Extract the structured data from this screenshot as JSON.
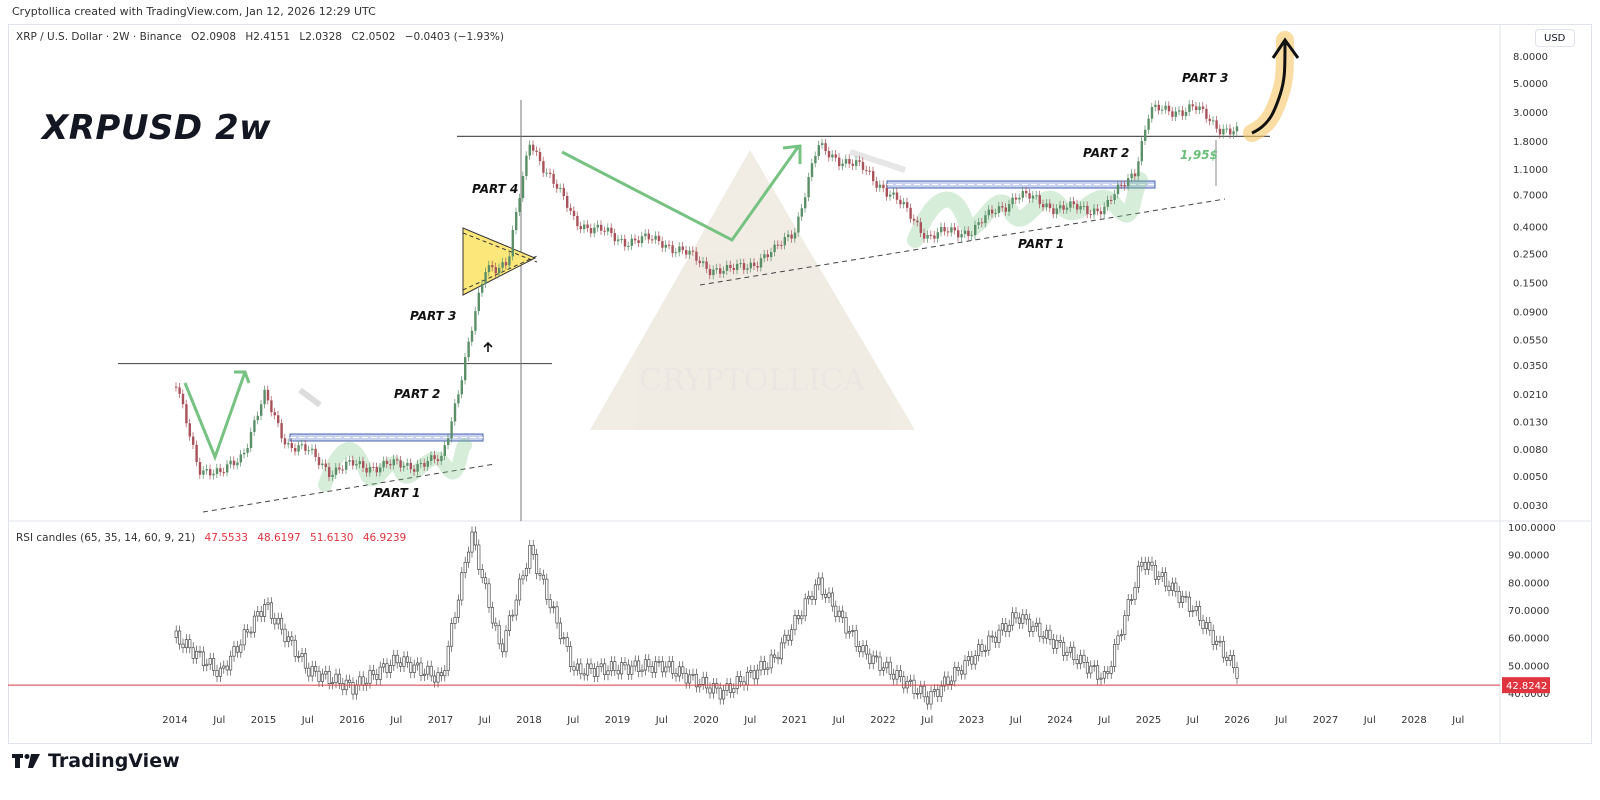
{
  "header": {
    "credit": "Cryptollica created with TradingView.com, Jan 12, 2026 12:29 UTC",
    "symbol": "XRP / U.S. Dollar · 2W · Binance",
    "ohlc": {
      "open": "O2.0908",
      "high": "H2.4151",
      "low": "L2.0328",
      "close": "C2.0502",
      "change": "−0.0403 (−1.93%)"
    },
    "currency_button": "USD"
  },
  "title_annotation": "XRPUSD 2w",
  "brand": "TradingView",
  "watermark": "CRYPTOLLICA",
  "colors": {
    "up": "#5b8f67",
    "down": "#a8525a",
    "rsi_line": "#e0343f",
    "arrow_green": "#76c282",
    "zone_blue": "#4a63b0",
    "yellow_fill": "#fbe77a",
    "highlight": "#f6c766"
  },
  "rsi_panel": {
    "label": "RSI candles (65, 35, 14, 60, 9, 21)",
    "values": [
      "47.5533",
      "48.6197",
      "51.6130",
      "46.9239"
    ],
    "current_label": "42.8242"
  },
  "chart_data": [
    {
      "type": "candlestick",
      "title": "XRP / U.S. Dollar · 2W · Binance",
      "scale": "log",
      "ylabel": "USD",
      "y_ticks": [
        "8.0000",
        "5.0000",
        "3.0000",
        "1.8000",
        "1.1000",
        "0.7000",
        "0.4000",
        "0.2500",
        "0.1500",
        "0.0900",
        "0.0550",
        "0.0350",
        "0.0210",
        "0.0130",
        "0.0080",
        "0.0050",
        "0.0030"
      ],
      "x_ticks": [
        "2014",
        "Jul",
        "2015",
        "Jul",
        "2016",
        "Jul",
        "2017",
        "Jul",
        "2018",
        "Jul",
        "2019",
        "Jul",
        "2020",
        "Jul",
        "2021",
        "Jul",
        "2022",
        "Jul",
        "2023",
        "Jul",
        "2024",
        "Jul",
        "2025",
        "Jul",
        "2026",
        "Jul",
        "2027",
        "Jul",
        "2028",
        "Jul"
      ],
      "approx_closes": [
        {
          "t": "2014-01",
          "v": 0.024
        },
        {
          "t": "2014-04",
          "v": 0.006
        },
        {
          "t": "2014-07",
          "v": 0.005
        },
        {
          "t": "2014-10",
          "v": 0.0075
        },
        {
          "t": "2015-01",
          "v": 0.02
        },
        {
          "t": "2015-04",
          "v": 0.009
        },
        {
          "t": "2015-07",
          "v": 0.0075
        },
        {
          "t": "2015-10",
          "v": 0.0055
        },
        {
          "t": "2016-01",
          "v": 0.006
        },
        {
          "t": "2016-07",
          "v": 0.006
        },
        {
          "t": "2017-01",
          "v": 0.0065
        },
        {
          "t": "2017-04",
          "v": 0.035
        },
        {
          "t": "2017-07",
          "v": 0.19
        },
        {
          "t": "2017-10",
          "v": 0.22
        },
        {
          "t": "2018-01",
          "v": 1.8
        },
        {
          "t": "2018-07",
          "v": 0.45
        },
        {
          "t": "2019-01",
          "v": 0.32
        },
        {
          "t": "2019-07",
          "v": 0.31
        },
        {
          "t": "2020-01",
          "v": 0.2
        },
        {
          "t": "2020-04",
          "v": 0.18
        },
        {
          "t": "2020-10",
          "v": 0.25
        },
        {
          "t": "2021-01",
          "v": 0.4
        },
        {
          "t": "2021-04",
          "v": 1.6
        },
        {
          "t": "2021-10",
          "v": 1.1
        },
        {
          "t": "2022-01",
          "v": 0.8
        },
        {
          "t": "2022-07",
          "v": 0.34
        },
        {
          "t": "2023-01",
          "v": 0.38
        },
        {
          "t": "2023-07",
          "v": 0.7
        },
        {
          "t": "2024-01",
          "v": 0.55
        },
        {
          "t": "2024-07",
          "v": 0.55
        },
        {
          "t": "2024-11",
          "v": 1.1
        },
        {
          "t": "2025-01",
          "v": 3.0
        },
        {
          "t": "2025-07",
          "v": 3.2
        },
        {
          "t": "2025-10",
          "v": 2.4
        },
        {
          "t": "2026-01",
          "v": 2.05
        }
      ],
      "horizontal_levels": [
        0.036,
        1.95
      ],
      "annotations": [
        "PART 1",
        "PART 2",
        "PART 3",
        "PART 4",
        "PART 1",
        "PART 2",
        "PART 3",
        "1,95$"
      ]
    },
    {
      "type": "candlestick",
      "title": "RSI candles (65, 35, 14, 60, 9, 21)",
      "ylim": [
        35,
        100
      ],
      "y_ticks": [
        "100.0000",
        "90.0000",
        "80.0000",
        "70.0000",
        "60.0000",
        "50.0000",
        "40.0000"
      ],
      "reference_line": 42.8242,
      "approx_values": [
        {
          "t": "2014-01",
          "v": 60
        },
        {
          "t": "2014-07",
          "v": 47
        },
        {
          "t": "2015-01",
          "v": 72
        },
        {
          "t": "2015-07",
          "v": 48
        },
        {
          "t": "2016-01",
          "v": 42
        },
        {
          "t": "2016-07",
          "v": 52
        },
        {
          "t": "2017-01",
          "v": 45
        },
        {
          "t": "2017-05",
          "v": 98
        },
        {
          "t": "2017-09",
          "v": 55
        },
        {
          "t": "2018-01",
          "v": 92
        },
        {
          "t": "2018-07",
          "v": 48
        },
        {
          "t": "2019-07",
          "v": 50
        },
        {
          "t": "2020-03",
          "v": 40
        },
        {
          "t": "2020-10",
          "v": 52
        },
        {
          "t": "2021-04",
          "v": 80
        },
        {
          "t": "2021-10",
          "v": 55
        },
        {
          "t": "2022-07",
          "v": 38
        },
        {
          "t": "2023-07",
          "v": 68
        },
        {
          "t": "2024-07",
          "v": 45
        },
        {
          "t": "2024-12",
          "v": 88
        },
        {
          "t": "2025-07",
          "v": 70
        },
        {
          "t": "2026-01",
          "v": 47
        }
      ]
    }
  ]
}
